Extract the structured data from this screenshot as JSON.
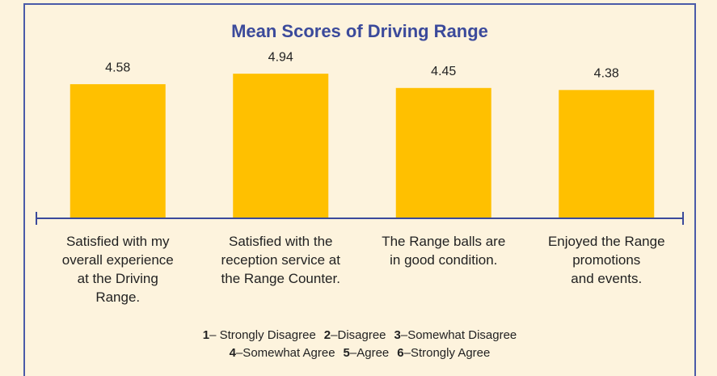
{
  "chart_data": {
    "type": "bar",
    "title": "Mean Scores of Driving Range",
    "categories": [
      "Satisfied with my\noverall experience\nat the Driving\nRange.",
      "Satisfied with the\nreception service at\nthe Range Counter.",
      "The Range balls are\nin good condition.",
      "Enjoyed the Range\npromotions\nand events."
    ],
    "values": [
      4.58,
      4.94,
      4.45,
      4.38
    ],
    "color": "#ffc000",
    "ylim": [
      0,
      6
    ],
    "scale_legend": [
      [
        {
          "number": 1,
          "label": "– Strongly Disagree"
        },
        {
          "number": 2,
          "label": "–Disagree"
        },
        {
          "number": 3,
          "label": "–Somewhat Disagree"
        }
      ],
      [
        {
          "number": 4,
          "label": "–Somewhat Agree"
        },
        {
          "number": 5,
          "label": "–Agree"
        },
        {
          "number": 6,
          "label": "–Strongly Agree"
        }
      ]
    ]
  }
}
